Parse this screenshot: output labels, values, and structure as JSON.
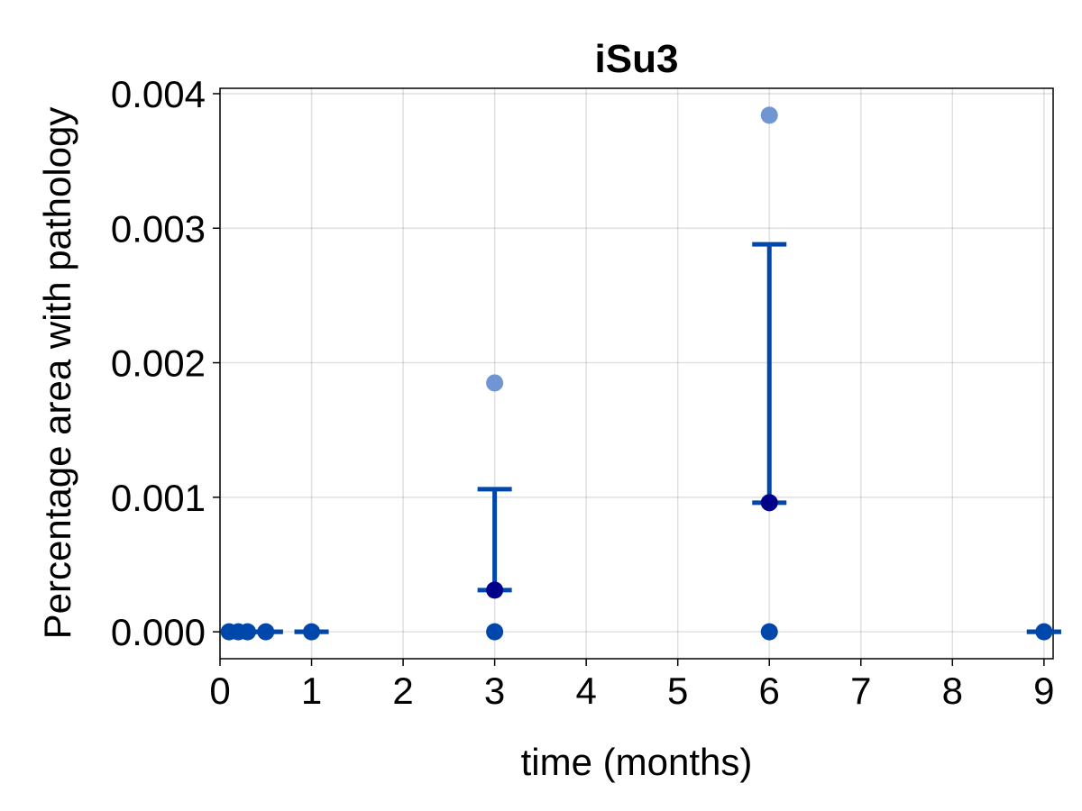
{
  "chart_data": {
    "type": "scatter",
    "title": "iSu3",
    "xlabel": "time (months)",
    "ylabel": "Percentage area with pathology",
    "xlim": [
      0,
      9.1
    ],
    "ylim": [
      -0.0002,
      0.00404
    ],
    "x_ticks": [
      0,
      1,
      2,
      3,
      4,
      5,
      6,
      7,
      8,
      9
    ],
    "x_tick_labels": [
      "0",
      "1",
      "2",
      "3",
      "4",
      "5",
      "6",
      "7",
      "8",
      "9"
    ],
    "y_ticks": [
      0,
      0.001,
      0.002,
      0.003,
      0.004
    ],
    "y_tick_labels": [
      "0.000",
      "0.001",
      "0.002",
      "0.003",
      "0.004"
    ],
    "grid": true,
    "colors": {
      "mean_marker": "#00008b",
      "individual_point": "#0047ab",
      "outlier_point": "#6f95d2",
      "error_bar": "#0047ab"
    },
    "individual_points": [
      {
        "x": 0.1,
        "y": 0
      },
      {
        "x": 0.2,
        "y": 0
      },
      {
        "x": 0.3,
        "y": 0
      },
      {
        "x": 0.5,
        "y": 0
      },
      {
        "x": 1,
        "y": 0
      },
      {
        "x": 3,
        "y": 0
      },
      {
        "x": 6,
        "y": 0
      },
      {
        "x": 9,
        "y": 0
      }
    ],
    "outlier_points": [
      {
        "x": 3,
        "y": 0.00185
      },
      {
        "x": 6,
        "y": 0.00384
      }
    ],
    "means": [
      {
        "x": 3,
        "y": 0.00031
      },
      {
        "x": 6,
        "y": 0.00096
      }
    ],
    "error_bars": [
      {
        "x": 0.2,
        "low": 0,
        "high": 0
      },
      {
        "x": 0.3,
        "low": 0,
        "high": 0
      },
      {
        "x": 0.5,
        "low": 0,
        "high": 0
      },
      {
        "x": 1,
        "low": 0,
        "high": 0
      },
      {
        "x": 3,
        "low": 0.00031,
        "high": 0.00106
      },
      {
        "x": 6,
        "low": 0.00096,
        "high": 0.00288
      },
      {
        "x": 9,
        "low": 0,
        "high": 0
      }
    ]
  }
}
